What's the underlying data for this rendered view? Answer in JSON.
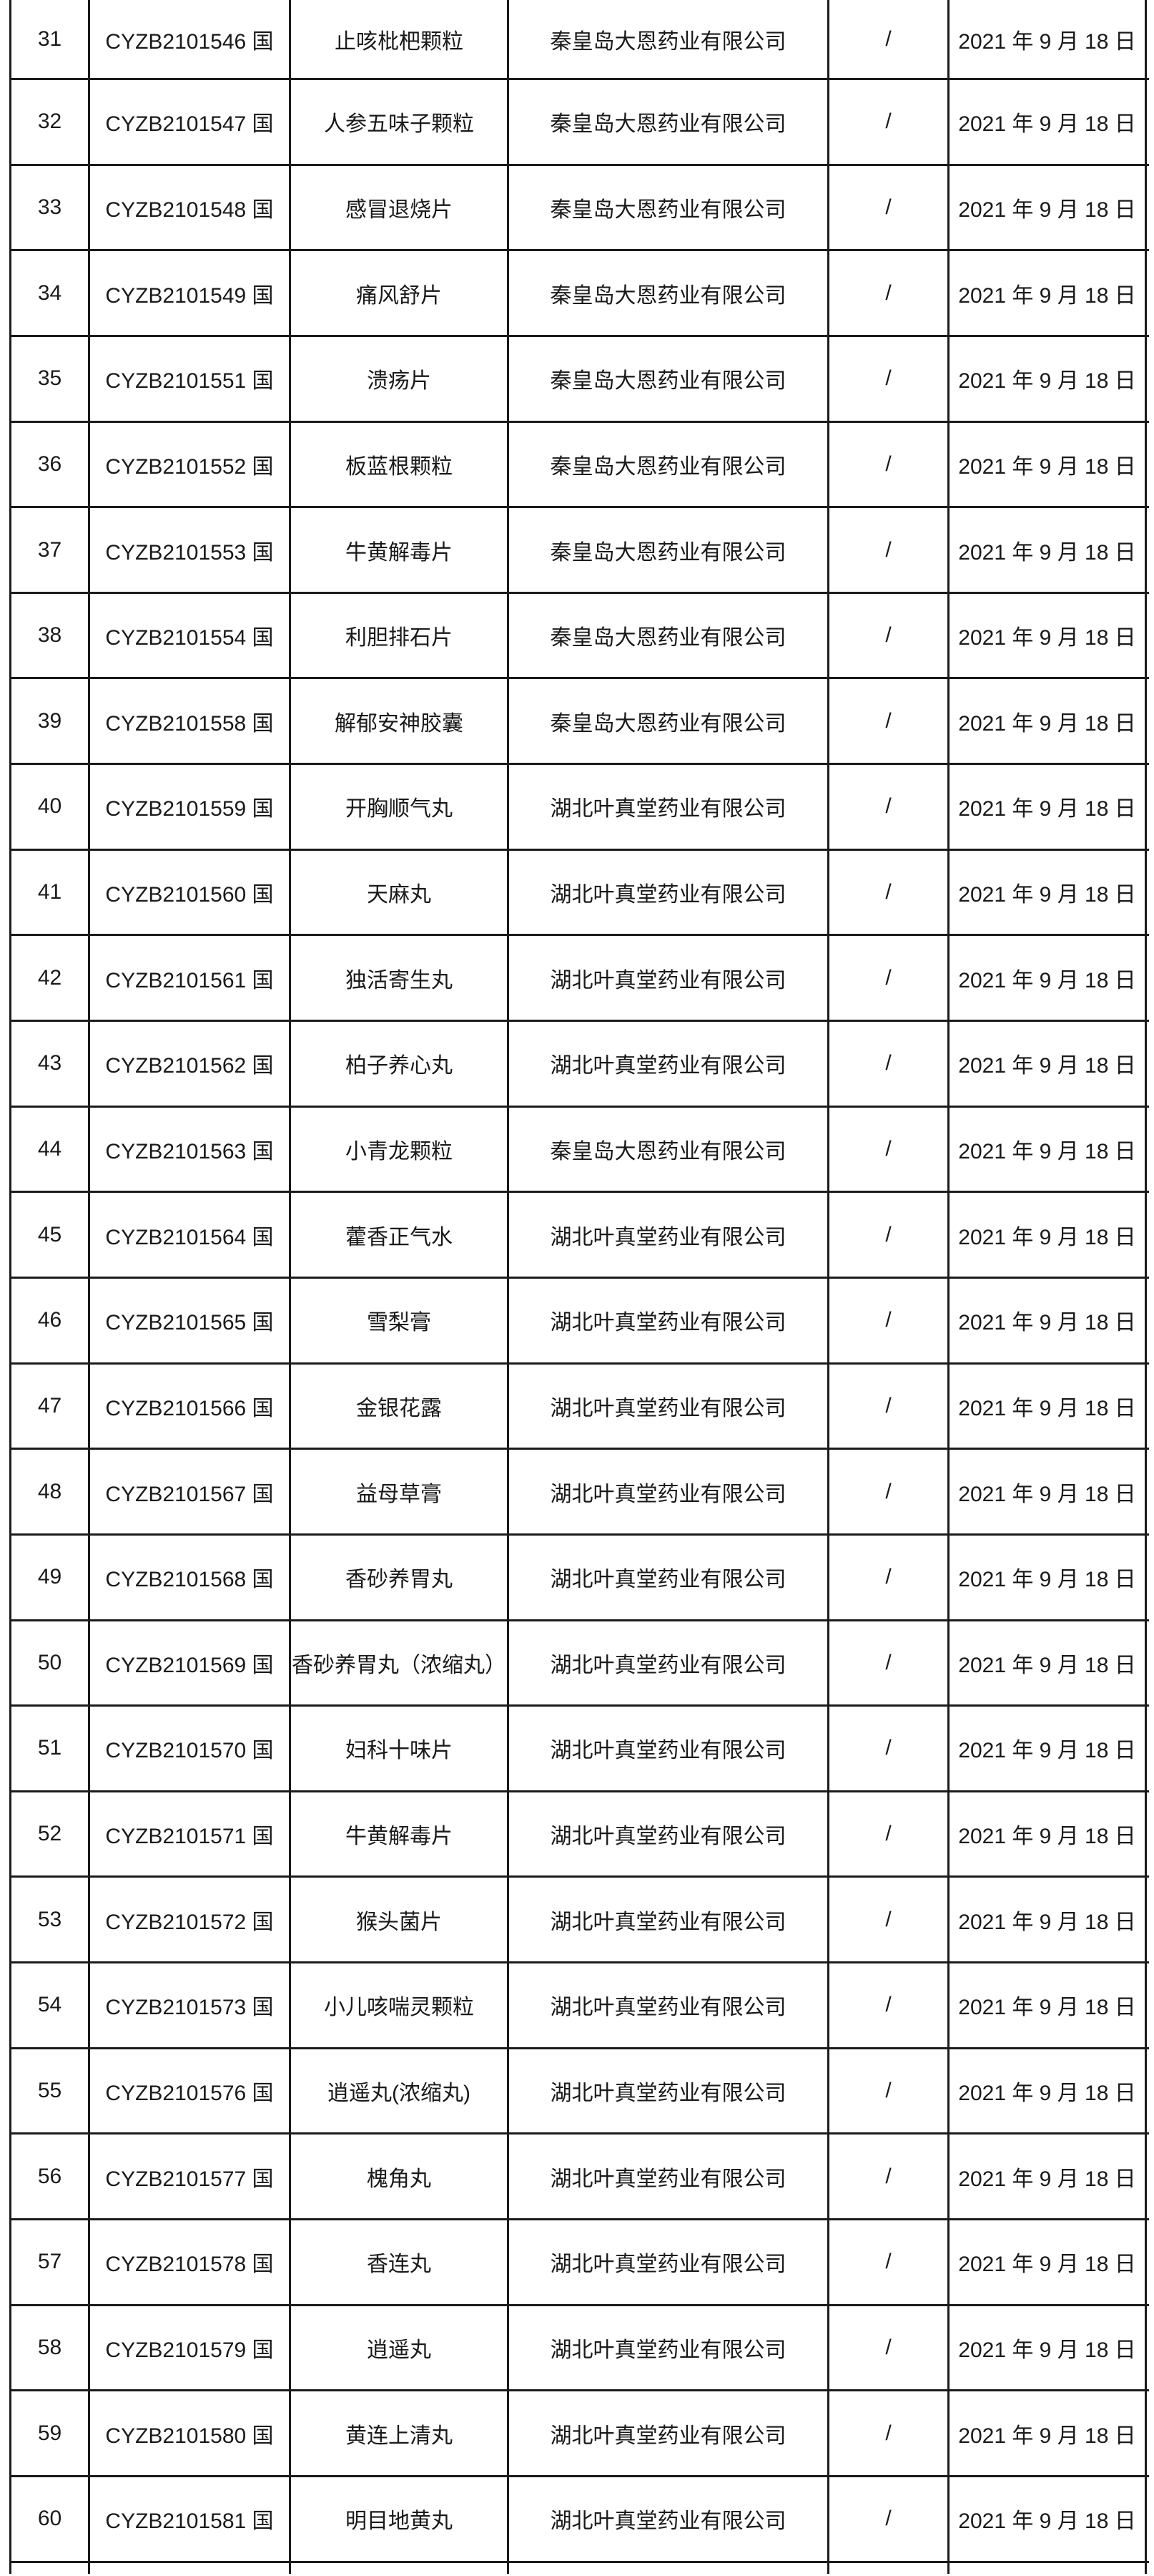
{
  "colors": {
    "background": "#ffffff",
    "border": "#1b1b1b",
    "text": "#1a1a1a"
  },
  "table": {
    "rows": [
      {
        "no": "31",
        "approval_no": "CYZB2101546 国",
        "drug_name": "止咳枇杷颗粒",
        "company": "秦皇岛大恩药业有限公司",
        "remark": "/",
        "date": "2021 年 9 月 18 日"
      },
      {
        "no": "32",
        "approval_no": "CYZB2101547 国",
        "drug_name": "人参五味子颗粒",
        "company": "秦皇岛大恩药业有限公司",
        "remark": "/",
        "date": "2021 年 9 月 18 日"
      },
      {
        "no": "33",
        "approval_no": "CYZB2101548 国",
        "drug_name": "感冒退烧片",
        "company": "秦皇岛大恩药业有限公司",
        "remark": "/",
        "date": "2021 年 9 月 18 日"
      },
      {
        "no": "34",
        "approval_no": "CYZB2101549 国",
        "drug_name": "痛风舒片",
        "company": "秦皇岛大恩药业有限公司",
        "remark": "/",
        "date": "2021 年 9 月 18 日"
      },
      {
        "no": "35",
        "approval_no": "CYZB2101551 国",
        "drug_name": "溃疡片",
        "company": "秦皇岛大恩药业有限公司",
        "remark": "/",
        "date": "2021 年 9 月 18 日"
      },
      {
        "no": "36",
        "approval_no": "CYZB2101552 国",
        "drug_name": "板蓝根颗粒",
        "company": "秦皇岛大恩药业有限公司",
        "remark": "/",
        "date": "2021 年 9 月 18 日"
      },
      {
        "no": "37",
        "approval_no": "CYZB2101553 国",
        "drug_name": "牛黄解毒片",
        "company": "秦皇岛大恩药业有限公司",
        "remark": "/",
        "date": "2021 年 9 月 18 日"
      },
      {
        "no": "38",
        "approval_no": "CYZB2101554 国",
        "drug_name": "利胆排石片",
        "company": "秦皇岛大恩药业有限公司",
        "remark": "/",
        "date": "2021 年 9 月 18 日"
      },
      {
        "no": "39",
        "approval_no": "CYZB2101558 国",
        "drug_name": "解郁安神胶囊",
        "company": "秦皇岛大恩药业有限公司",
        "remark": "/",
        "date": "2021 年 9 月 18 日"
      },
      {
        "no": "40",
        "approval_no": "CYZB2101559 国",
        "drug_name": "开胸顺气丸",
        "company": "湖北叶真堂药业有限公司",
        "remark": "/",
        "date": "2021 年 9 月 18 日"
      },
      {
        "no": "41",
        "approval_no": "CYZB2101560 国",
        "drug_name": "天麻丸",
        "company": "湖北叶真堂药业有限公司",
        "remark": "/",
        "date": "2021 年 9 月 18 日"
      },
      {
        "no": "42",
        "approval_no": "CYZB2101561 国",
        "drug_name": "独活寄生丸",
        "company": "湖北叶真堂药业有限公司",
        "remark": "/",
        "date": "2021 年 9 月 18 日"
      },
      {
        "no": "43",
        "approval_no": "CYZB2101562 国",
        "drug_name": "柏子养心丸",
        "company": "湖北叶真堂药业有限公司",
        "remark": "/",
        "date": "2021 年 9 月 18 日"
      },
      {
        "no": "44",
        "approval_no": "CYZB2101563 国",
        "drug_name": "小青龙颗粒",
        "company": "秦皇岛大恩药业有限公司",
        "remark": "/",
        "date": "2021 年 9 月 18 日"
      },
      {
        "no": "45",
        "approval_no": "CYZB2101564 国",
        "drug_name": "藿香正气水",
        "company": "湖北叶真堂药业有限公司",
        "remark": "/",
        "date": "2021 年 9 月 18 日"
      },
      {
        "no": "46",
        "approval_no": "CYZB2101565 国",
        "drug_name": "雪梨膏",
        "company": "湖北叶真堂药业有限公司",
        "remark": "/",
        "date": "2021 年 9 月 18 日"
      },
      {
        "no": "47",
        "approval_no": "CYZB2101566 国",
        "drug_name": "金银花露",
        "company": "湖北叶真堂药业有限公司",
        "remark": "/",
        "date": "2021 年 9 月 18 日"
      },
      {
        "no": "48",
        "approval_no": "CYZB2101567 国",
        "drug_name": "益母草膏",
        "company": "湖北叶真堂药业有限公司",
        "remark": "/",
        "date": "2021 年 9 月 18 日"
      },
      {
        "no": "49",
        "approval_no": "CYZB2101568 国",
        "drug_name": "香砂养胃丸",
        "company": "湖北叶真堂药业有限公司",
        "remark": "/",
        "date": "2021 年 9 月 18 日"
      },
      {
        "no": "50",
        "approval_no": "CYZB2101569 国",
        "drug_name": "香砂养胃丸（浓缩丸）",
        "company": "湖北叶真堂药业有限公司",
        "remark": "/",
        "date": "2021 年 9 月 18 日"
      },
      {
        "no": "51",
        "approval_no": "CYZB2101570 国",
        "drug_name": "妇科十味片",
        "company": "湖北叶真堂药业有限公司",
        "remark": "/",
        "date": "2021 年 9 月 18 日"
      },
      {
        "no": "52",
        "approval_no": "CYZB2101571 国",
        "drug_name": "牛黄解毒片",
        "company": "湖北叶真堂药业有限公司",
        "remark": "/",
        "date": "2021 年 9 月 18 日"
      },
      {
        "no": "53",
        "approval_no": "CYZB2101572 国",
        "drug_name": "猴头菌片",
        "company": "湖北叶真堂药业有限公司",
        "remark": "/",
        "date": "2021 年 9 月 18 日"
      },
      {
        "no": "54",
        "approval_no": "CYZB2101573 国",
        "drug_name": "小儿咳喘灵颗粒",
        "company": "湖北叶真堂药业有限公司",
        "remark": "/",
        "date": "2021 年 9 月 18 日"
      },
      {
        "no": "55",
        "approval_no": "CYZB2101576 国",
        "drug_name": "逍遥丸(浓缩丸)",
        "company": "湖北叶真堂药业有限公司",
        "remark": "/",
        "date": "2021 年 9 月 18 日"
      },
      {
        "no": "56",
        "approval_no": "CYZB2101577 国",
        "drug_name": "槐角丸",
        "company": "湖北叶真堂药业有限公司",
        "remark": "/",
        "date": "2021 年 9 月 18 日"
      },
      {
        "no": "57",
        "approval_no": "CYZB2101578 国",
        "drug_name": "香连丸",
        "company": "湖北叶真堂药业有限公司",
        "remark": "/",
        "date": "2021 年 9 月 18 日"
      },
      {
        "no": "58",
        "approval_no": "CYZB2101579 国",
        "drug_name": "逍遥丸",
        "company": "湖北叶真堂药业有限公司",
        "remark": "/",
        "date": "2021 年 9 月 18 日"
      },
      {
        "no": "59",
        "approval_no": "CYZB2101580 国",
        "drug_name": "黄连上清丸",
        "company": "湖北叶真堂药业有限公司",
        "remark": "/",
        "date": "2021 年 9 月 18 日"
      },
      {
        "no": "60",
        "approval_no": "CYZB2101581 国",
        "drug_name": "明目地黄丸",
        "company": "湖北叶真堂药业有限公司",
        "remark": "/",
        "date": "2021 年 9 月 18 日"
      }
    ]
  }
}
